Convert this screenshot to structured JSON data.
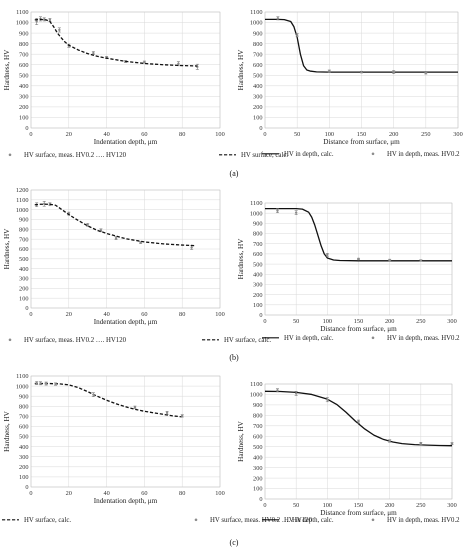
{
  "panel_labels": [
    "(a)",
    "(b)",
    "(c)"
  ],
  "chart_data": [
    {
      "type": "line",
      "panel": "(a)",
      "xlabel": "Indentation depth, μm",
      "ylabel": "Hardness, HV",
      "xlim": [
        0,
        100
      ],
      "ylim": [
        0,
        1100
      ],
      "xticks": [
        0,
        20,
        40,
        60,
        80,
        100
      ],
      "yticks": [
        0,
        100,
        200,
        300,
        400,
        500,
        600,
        700,
        800,
        900,
        1000,
        1100
      ],
      "grid": true,
      "legend_position": "bottom",
      "series": [
        {
          "name": "HV surface, meas. HV0.2 …. HV120",
          "style": "points",
          "x": [
            3,
            5,
            7,
            10,
            15,
            20,
            33,
            40,
            50,
            60,
            78,
            88
          ],
          "y": [
            1010,
            1035,
            1030,
            1025,
            930,
            780,
            710,
            670,
            630,
            625,
            610,
            580
          ],
          "err": [
            30,
            20,
            15,
            15,
            20,
            15,
            15,
            10,
            10,
            10,
            20,
            25
          ]
        },
        {
          "name": "HV surface, calc.",
          "style": "dashed",
          "x": [
            2,
            5,
            8,
            10,
            12,
            14,
            16,
            18,
            20,
            25,
            30,
            35,
            40,
            50,
            60,
            70,
            80,
            88
          ],
          "y": [
            1025,
            1030,
            1025,
            1010,
            960,
            900,
            855,
            815,
            785,
            740,
            705,
            680,
            662,
            632,
            612,
            600,
            592,
            588
          ]
        }
      ]
    },
    {
      "type": "line",
      "panel": "(a)",
      "xlabel": "Distance from surface, μm",
      "ylabel": "Hardness, HV",
      "xlim": [
        0,
        300
      ],
      "ylim": [
        0,
        1100
      ],
      "xticks": [
        0,
        50,
        100,
        150,
        200,
        250,
        300
      ],
      "yticks": [
        0,
        100,
        200,
        300,
        400,
        500,
        600,
        700,
        800,
        900,
        1000,
        1100
      ],
      "grid": true,
      "legend_position": "bottom",
      "series": [
        {
          "name": "HV in depth, calc.",
          "style": "solid",
          "x": [
            0,
            20,
            30,
            40,
            45,
            50,
            55,
            60,
            65,
            70,
            80,
            100,
            150,
            200,
            250,
            300
          ],
          "y": [
            1030,
            1030,
            1028,
            1010,
            960,
            860,
            700,
            590,
            550,
            540,
            532,
            530,
            530,
            530,
            530,
            530
          ]
        },
        {
          "name": "HV in depth, meas. HV0.2",
          "style": "points",
          "x": [
            20,
            50,
            100,
            150,
            200,
            250
          ],
          "y": [
            1040,
            880,
            540,
            530,
            530,
            520
          ],
          "err": [
            15,
            15,
            10,
            8,
            15,
            8
          ]
        }
      ]
    },
    {
      "type": "line",
      "panel": "(b)",
      "xlabel": "Indentation depth, μm",
      "ylabel": "Hardness, HV",
      "xlim": [
        0,
        100
      ],
      "ylim": [
        0,
        1200
      ],
      "xticks": [
        0,
        20,
        40,
        60,
        80,
        100
      ],
      "yticks": [
        0,
        100,
        200,
        300,
        400,
        500,
        600,
        700,
        800,
        900,
        1000,
        1100,
        1200
      ],
      "grid": true,
      "legend_position": "bottom",
      "series": [
        {
          "name": "HV surface, meas. HV0.2 …. HV120",
          "style": "points",
          "x": [
            3,
            7,
            10,
            20,
            30,
            37,
            45,
            58,
            85
          ],
          "y": [
            1050,
            1060,
            1055,
            960,
            845,
            790,
            710,
            665,
            615
          ],
          "err": [
            20,
            25,
            15,
            15,
            15,
            15,
            15,
            10,
            20
          ]
        },
        {
          "name": "HV surface, calc.",
          "style": "dashed",
          "x": [
            2,
            5,
            10,
            13,
            16,
            20,
            25,
            30,
            35,
            40,
            50,
            60,
            70,
            80,
            87
          ],
          "y": [
            1050,
            1055,
            1055,
            1045,
            1005,
            950,
            890,
            835,
            790,
            758,
            705,
            672,
            652,
            640,
            634
          ]
        }
      ]
    },
    {
      "type": "line",
      "panel": "(b)",
      "xlabel": "Distance from surface, μm",
      "ylabel": "Hardness, HV",
      "xlim": [
        0,
        300
      ],
      "ylim": [
        0,
        1100
      ],
      "xticks": [
        0,
        50,
        100,
        150,
        200,
        250,
        300
      ],
      "yticks": [
        0,
        100,
        200,
        300,
        400,
        500,
        600,
        700,
        800,
        900,
        1000,
        1100
      ],
      "grid": true,
      "legend_position": "bottom",
      "series": [
        {
          "name": "HV in depth, calc.",
          "style": "solid",
          "x": [
            0,
            50,
            60,
            70,
            75,
            80,
            85,
            90,
            95,
            100,
            110,
            120,
            150,
            200,
            250,
            300
          ],
          "y": [
            1045,
            1045,
            1040,
            1010,
            960,
            880,
            780,
            680,
            600,
            560,
            540,
            535,
            532,
            532,
            532,
            532
          ]
        },
        {
          "name": "HV in depth, meas. HV0.2",
          "style": "points",
          "x": [
            20,
            50,
            100,
            150,
            200,
            250
          ],
          "y": [
            1025,
            1005,
            590,
            550,
            540,
            535
          ],
          "err": [
            20,
            20,
            15,
            8,
            8,
            8
          ]
        }
      ]
    },
    {
      "type": "line",
      "panel": "(c)",
      "xlabel": "Indentation depth, μm",
      "ylabel": "Hardness, HV",
      "xlim": [
        0,
        100
      ],
      "ylim": [
        0,
        1100
      ],
      "xticks": [
        0,
        20,
        40,
        60,
        80,
        100
      ],
      "yticks": [
        0,
        100,
        200,
        300,
        400,
        500,
        600,
        700,
        800,
        900,
        1000,
        1100
      ],
      "grid": true,
      "legend_position": "bottom",
      "series": [
        {
          "name": "HV surface, calc.",
          "style": "dashed",
          "x": [
            2,
            5,
            10,
            15,
            20,
            25,
            30,
            35,
            40,
            45,
            50,
            55,
            60,
            65,
            70,
            75,
            80
          ],
          "y": [
            1025,
            1025,
            1025,
            1022,
            1012,
            985,
            945,
            900,
            860,
            825,
            795,
            770,
            750,
            735,
            720,
            705,
            695
          ]
        },
        {
          "name": "HV surface, meas. HV0.2 …. HV120",
          "style": "points",
          "x": [
            3,
            5,
            8,
            13,
            33,
            55,
            72,
            80
          ],
          "y": [
            1030,
            1028,
            1025,
            1020,
            915,
            790,
            735,
            705
          ],
          "err": [
            15,
            15,
            15,
            12,
            20,
            12,
            15,
            12
          ]
        }
      ]
    },
    {
      "type": "line",
      "panel": "(c)",
      "xlabel": "Distance from surface, μm",
      "ylabel": "Hardness, HV",
      "xlim": [
        0,
        300
      ],
      "ylim": [
        0,
        1100
      ],
      "xticks": [
        0,
        50,
        100,
        150,
        200,
        250,
        300
      ],
      "yticks": [
        0,
        100,
        200,
        300,
        400,
        500,
        600,
        700,
        800,
        900,
        1000,
        1100
      ],
      "grid": true,
      "legend_position": "bottom",
      "series": [
        {
          "name": "HV in depth, calc.",
          "style": "solid",
          "x": [
            0,
            25,
            50,
            75,
            100,
            115,
            130,
            145,
            160,
            175,
            190,
            205,
            220,
            240,
            260,
            280,
            300
          ],
          "y": [
            1030,
            1028,
            1020,
            1000,
            955,
            905,
            830,
            745,
            670,
            610,
            570,
            545,
            530,
            520,
            515,
            512,
            510
          ]
        },
        {
          "name": "HV in depth, meas. HV0.2",
          "style": "points",
          "x": [
            20,
            50,
            100,
            150,
            200,
            250,
            300
          ],
          "y": [
            1040,
            1010,
            950,
            740,
            555,
            530,
            530
          ],
          "err": [
            15,
            20,
            20,
            15,
            12,
            12,
            10
          ]
        }
      ]
    }
  ]
}
